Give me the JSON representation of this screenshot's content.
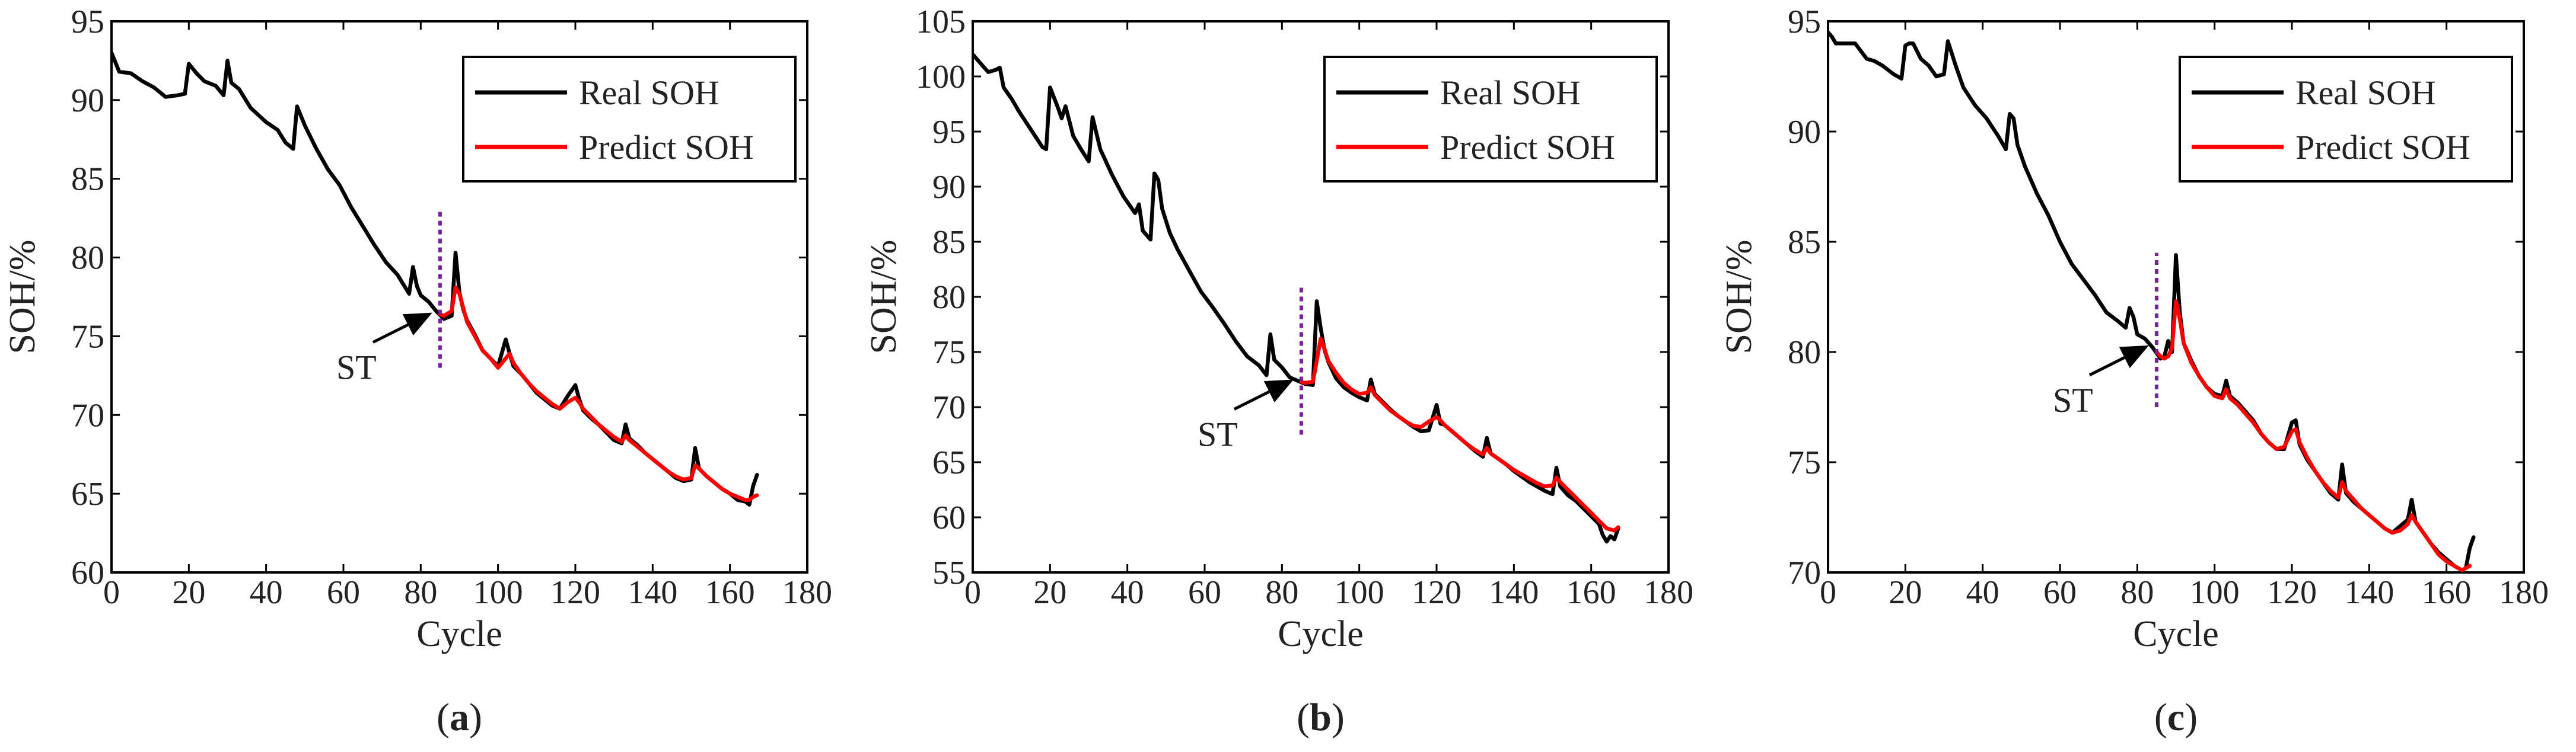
{
  "chart_data": [
    {
      "id": "a",
      "type": "line",
      "panel_label": {
        "open": "(",
        "letter": "a",
        "close": ")"
      },
      "xlabel": "Cycle",
      "ylabel": "SOH/%",
      "xlim": [
        0,
        180
      ],
      "ylim": [
        60,
        95
      ],
      "xticks": [
        0,
        20,
        40,
        60,
        80,
        100,
        120,
        140,
        160,
        180
      ],
      "yticks": [
        60,
        65,
        70,
        75,
        80,
        85,
        90,
        95
      ],
      "legend": {
        "position": "top-right",
        "entries": [
          "Real SOH",
          "Predict SOH"
        ]
      },
      "start_marker": {
        "x": 85,
        "label": "ST",
        "arrow_to": [
          83,
          76.5
        ],
        "line_range": [
          73,
          83
        ]
      },
      "series": [
        {
          "name": "Real SOH",
          "color": "#000000",
          "x": [
            0,
            2,
            5,
            8,
            11,
            14,
            17,
            19,
            20,
            22,
            24,
            27,
            29,
            30,
            31,
            33,
            36,
            40,
            43,
            45,
            47,
            48,
            50,
            53,
            56,
            59,
            62,
            65,
            68,
            71,
            74,
            77,
            78,
            79,
            80,
            82,
            84,
            86,
            88,
            89,
            90,
            91,
            92,
            94,
            96,
            98,
            100,
            102,
            103,
            104,
            106,
            108,
            110,
            112,
            114,
            116,
            118,
            120,
            121,
            122,
            124,
            126,
            128,
            130,
            132,
            133,
            134,
            136,
            138,
            140,
            142,
            144,
            146,
            148,
            150,
            151,
            152,
            154,
            156,
            158,
            160,
            162,
            164,
            165,
            166,
            167
          ],
          "values": [
            93,
            91.8,
            91.7,
            91.2,
            90.8,
            90.2,
            90.3,
            90.4,
            92.3,
            91.7,
            91.2,
            90.9,
            90.3,
            92.5,
            91.1,
            90.7,
            89.5,
            88.6,
            88.1,
            87.3,
            86.9,
            89.6,
            88.4,
            86.9,
            85.6,
            84.6,
            83.2,
            82.0,
            80.8,
            79.7,
            78.9,
            77.7,
            79.4,
            78.2,
            77.6,
            77.2,
            76.6,
            76.1,
            76.3,
            80.3,
            77.8,
            76.7,
            76.0,
            75.1,
            74.1,
            73.6,
            73.1,
            74.8,
            73.9,
            73.1,
            72.6,
            72.0,
            71.4,
            71.0,
            70.6,
            70.4,
            71.2,
            71.9,
            71.0,
            70.3,
            69.8,
            69.4,
            68.9,
            68.4,
            68.2,
            69.4,
            68.5,
            68.1,
            67.6,
            67.2,
            66.8,
            66.4,
            66.0,
            65.8,
            65.9,
            67.9,
            66.6,
            66.1,
            65.7,
            65.3,
            65.0,
            64.6,
            64.5,
            64.3,
            65.5,
            66.2
          ]
        },
        {
          "name": "Predict SOH",
          "color": "#ff0000",
          "x": [
            85,
            86,
            88,
            89,
            90,
            91,
            92,
            94,
            96,
            98,
            100,
            102,
            103,
            104,
            106,
            108,
            110,
            112,
            114,
            116,
            118,
            120,
            121,
            122,
            124,
            126,
            128,
            130,
            132,
            133,
            134,
            136,
            138,
            140,
            142,
            144,
            146,
            148,
            150,
            151,
            152,
            154,
            156,
            158,
            160,
            162,
            164,
            165,
            166,
            167
          ],
          "values": [
            76.4,
            76.3,
            76.6,
            78.1,
            77.7,
            76.8,
            75.9,
            75.0,
            74.1,
            73.6,
            73.0,
            73.6,
            73.9,
            73.3,
            72.6,
            72.0,
            71.5,
            71.1,
            70.7,
            70.4,
            70.8,
            71.1,
            70.8,
            70.4,
            69.9,
            69.4,
            69.0,
            68.6,
            68.3,
            68.7,
            68.4,
            68.0,
            67.6,
            67.2,
            66.8,
            66.4,
            66.1,
            65.9,
            66.0,
            66.8,
            66.6,
            66.1,
            65.7,
            65.3,
            65.0,
            64.8,
            64.6,
            64.6,
            64.8,
            64.9
          ]
        }
      ]
    },
    {
      "id": "b",
      "type": "line",
      "panel_label": {
        "open": "(",
        "letter": "b",
        "close": ")"
      },
      "xlabel": "Cycle",
      "ylabel": "SOH/%",
      "xlim": [
        0,
        180
      ],
      "ylim": [
        55,
        105
      ],
      "xticks": [
        0,
        20,
        40,
        60,
        80,
        100,
        120,
        140,
        160,
        180
      ],
      "yticks": [
        55,
        60,
        65,
        70,
        75,
        80,
        85,
        90,
        95,
        100,
        105
      ],
      "legend": {
        "position": "top-right",
        "entries": [
          "Real SOH",
          "Predict SOH"
        ]
      },
      "start_marker": {
        "x": 85,
        "label": "ST",
        "arrow_to": [
          83,
          72.5
        ],
        "line_range": [
          67.5,
          81
        ]
      },
      "series": [
        {
          "name": "Real SOH",
          "color": "#000000",
          "x": [
            0,
            2,
            4,
            6,
            7,
            8,
            10,
            12,
            15,
            18,
            19,
            20,
            22,
            23,
            24,
            26,
            28,
            30,
            31,
            33,
            36,
            39,
            42,
            43,
            44,
            46,
            47,
            48,
            49,
            51,
            53,
            56,
            59,
            62,
            65,
            68,
            71,
            74,
            76,
            77,
            78,
            80,
            82,
            84,
            86,
            88,
            89,
            90,
            91,
            92,
            94,
            96,
            98,
            100,
            102,
            103,
            104,
            106,
            108,
            110,
            112,
            114,
            116,
            118,
            120,
            121,
            122,
            124,
            126,
            128,
            130,
            132,
            133,
            134,
            136,
            138,
            140,
            142,
            144,
            146,
            148,
            150,
            151,
            152,
            154,
            156,
            158,
            160,
            162,
            163,
            164,
            165,
            166,
            167
          ],
          "values": [
            102,
            101.2,
            100.4,
            100.6,
            100.8,
            99.0,
            98.0,
            96.8,
            95.2,
            93.6,
            93.4,
            99.0,
            97.2,
            96.2,
            97.3,
            94.6,
            93.4,
            92.3,
            96.3,
            93.4,
            91.1,
            89.1,
            87.6,
            88.4,
            86.0,
            85.2,
            91.2,
            90.6,
            88.0,
            85.8,
            84.3,
            82.4,
            80.5,
            79.1,
            77.6,
            76.0,
            74.6,
            73.8,
            72.9,
            76.6,
            74.3,
            73.6,
            72.7,
            72.4,
            72.1,
            72.0,
            79.6,
            77.2,
            75.2,
            74.1,
            72.6,
            71.8,
            71.3,
            70.9,
            70.6,
            72.5,
            71.2,
            70.5,
            69.8,
            69.2,
            68.7,
            68.2,
            67.8,
            67.9,
            70.2,
            68.5,
            68.4,
            67.8,
            67.2,
            66.6,
            66.0,
            65.5,
            67.2,
            65.8,
            65.3,
            64.8,
            64.2,
            63.7,
            63.2,
            62.8,
            62.4,
            62.1,
            64.5,
            62.8,
            62.0,
            61.5,
            60.8,
            60.1,
            59.4,
            58.4,
            57.8,
            58.3,
            58.0,
            59.0
          ]
        },
        {
          "name": "Predict SOH",
          "color": "#ff0000",
          "x": [
            85,
            86,
            88,
            89,
            90,
            91,
            92,
            94,
            96,
            98,
            100,
            102,
            103,
            104,
            106,
            108,
            110,
            112,
            114,
            116,
            118,
            120,
            121,
            122,
            124,
            126,
            128,
            130,
            132,
            133,
            134,
            136,
            138,
            140,
            142,
            144,
            146,
            148,
            150,
            151,
            152,
            154,
            156,
            158,
            160,
            162,
            164,
            166,
            167
          ],
          "values": [
            72.3,
            72.2,
            72.3,
            74.2,
            76.2,
            75.3,
            74.2,
            73.1,
            72.2,
            71.6,
            71.2,
            71.3,
            71.8,
            71.1,
            70.4,
            69.7,
            69.2,
            68.7,
            68.3,
            68.2,
            68.7,
            69.1,
            68.8,
            68.4,
            67.8,
            67.2,
            66.6,
            66.1,
            65.7,
            66.3,
            65.8,
            65.3,
            64.8,
            64.3,
            63.9,
            63.5,
            63.1,
            62.8,
            62.9,
            63.6,
            63.2,
            62.5,
            61.8,
            61.1,
            60.4,
            59.7,
            59.0,
            58.8,
            59.1
          ]
        }
      ]
    },
    {
      "id": "c",
      "type": "line",
      "panel_label": {
        "open": "(",
        "letter": "c",
        "close": ")"
      },
      "xlabel": "Cycle",
      "ylabel": "SOH/%",
      "xlim": [
        0,
        180
      ],
      "ylim": [
        70,
        95
      ],
      "xticks": [
        0,
        20,
        40,
        60,
        80,
        100,
        120,
        140,
        160,
        180
      ],
      "yticks": [
        70,
        75,
        80,
        85,
        90,
        95
      ],
      "legend": {
        "position": "top-right",
        "entries": [
          "Real SOH",
          "Predict SOH"
        ]
      },
      "start_marker": {
        "x": 85,
        "label": "ST",
        "arrow_to": [
          83,
          80.3
        ],
        "line_range": [
          77.5,
          84.5
        ]
      },
      "series": [
        {
          "name": "Real SOH",
          "color": "#000000",
          "x": [
            0,
            1,
            2,
            4,
            7,
            10,
            12,
            14,
            17,
            19,
            20,
            21,
            22,
            24,
            26,
            28,
            30,
            31,
            33,
            35,
            38,
            41,
            44,
            46,
            47,
            48,
            49,
            51,
            54,
            57,
            60,
            63,
            66,
            69,
            72,
            75,
            77,
            78,
            79,
            80,
            82,
            84,
            86,
            87,
            88,
            89,
            90,
            91,
            92,
            94,
            96,
            98,
            100,
            102,
            103,
            104,
            106,
            108,
            110,
            112,
            114,
            116,
            118,
            120,
            121,
            122,
            124,
            126,
            128,
            130,
            132,
            133,
            134,
            136,
            138,
            140,
            142,
            144,
            146,
            148,
            150,
            151,
            152,
            154,
            156,
            158,
            160,
            162,
            164,
            165,
            166,
            167
          ],
          "values": [
            94.5,
            94.3,
            94.0,
            94.0,
            94.0,
            93.3,
            93.2,
            93.0,
            92.6,
            92.4,
            93.9,
            94.0,
            94.0,
            93.3,
            93.0,
            92.5,
            92.6,
            94.1,
            93.0,
            92.0,
            91.2,
            90.6,
            89.8,
            89.2,
            90.8,
            90.6,
            89.4,
            88.4,
            87.2,
            86.2,
            85.0,
            84.0,
            83.3,
            82.6,
            81.8,
            81.4,
            81.1,
            82.0,
            81.6,
            80.8,
            80.6,
            80.2,
            79.7,
            79.8,
            80.5,
            80.0,
            84.4,
            81.8,
            80.4,
            79.6,
            78.9,
            78.4,
            78.1,
            78.0,
            78.7,
            78.0,
            77.7,
            77.3,
            76.9,
            76.3,
            75.9,
            75.6,
            75.6,
            76.8,
            76.9,
            75.8,
            75.1,
            74.6,
            74.1,
            73.6,
            73.3,
            74.9,
            73.6,
            73.2,
            72.9,
            72.6,
            72.3,
            72.0,
            71.8,
            72.1,
            72.4,
            73.3,
            72.3,
            71.8,
            71.3,
            70.9,
            70.6,
            70.3,
            70.1,
            70.2,
            71.1,
            71.6
          ]
        },
        {
          "name": "Predict SOH",
          "color": "#ff0000",
          "x": [
            85,
            86,
            87,
            88,
            89,
            90,
            91,
            92,
            94,
            96,
            98,
            100,
            102,
            103,
            104,
            106,
            108,
            110,
            112,
            114,
            116,
            118,
            120,
            121,
            122,
            124,
            126,
            128,
            130,
            132,
            133,
            134,
            136,
            138,
            140,
            142,
            144,
            146,
            148,
            150,
            151,
            152,
            154,
            156,
            158,
            160,
            162,
            164,
            166
          ],
          "values": [
            80.0,
            79.8,
            79.7,
            79.8,
            80.2,
            82.3,
            81.5,
            80.4,
            79.5,
            78.9,
            78.4,
            78.0,
            77.9,
            78.3,
            77.9,
            77.6,
            77.2,
            76.8,
            76.3,
            75.9,
            75.6,
            75.7,
            76.4,
            76.5,
            75.9,
            75.2,
            74.6,
            74.1,
            73.7,
            73.4,
            74.1,
            73.7,
            73.3,
            72.9,
            72.6,
            72.3,
            72.0,
            71.8,
            71.9,
            72.2,
            72.6,
            72.3,
            71.8,
            71.3,
            70.8,
            70.5,
            70.3,
            70.1,
            70.3
          ]
        }
      ]
    }
  ]
}
